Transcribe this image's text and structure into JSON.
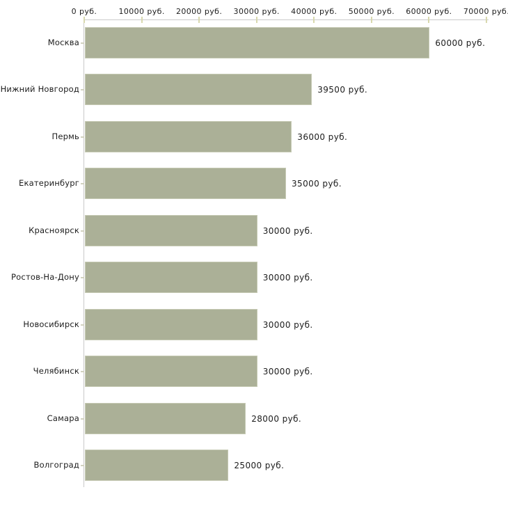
{
  "chart_data": {
    "type": "bar",
    "orientation": "horizontal",
    "title": "",
    "unit": "руб.",
    "categories": [
      "Москва",
      "Нижний Новгород",
      "Пермь",
      "Екатеринбург",
      "Красноярск",
      "Ростов-На-Дону",
      "Новосибирск",
      "Челябинск",
      "Самара",
      "Волгоград"
    ],
    "values": [
      60000,
      39500,
      36000,
      35000,
      30000,
      30000,
      30000,
      30000,
      28000,
      25000
    ],
    "value_labels": [
      "60000 руб.",
      "39500 руб.",
      "36000 руб.",
      "35000 руб.",
      "30000 руб.",
      "30000 руб.",
      "30000 руб.",
      "30000 руб.",
      "28000 руб.",
      "25000 руб."
    ],
    "x_axis": {
      "position": "top",
      "range": [
        0,
        70000
      ],
      "ticks": [
        0,
        10000,
        20000,
        30000,
        40000,
        50000,
        60000,
        70000
      ],
      "tick_labels": [
        "0 руб.",
        "10000 руб.",
        "20000 руб.",
        "30000 руб.",
        "40000 руб.",
        "50000 руб.",
        "60000 руб.",
        "70000 руб."
      ]
    },
    "legend": null,
    "grid": false,
    "colors": {
      "bar_fill": "#abb097",
      "bar_border": "#c6cab4",
      "axis_line": "#c9c9c9",
      "axis_tick": "#d8d8ae",
      "category_tick": "#d2d2c0",
      "text": "#1c1c1c",
      "background": "#ffffff"
    }
  }
}
